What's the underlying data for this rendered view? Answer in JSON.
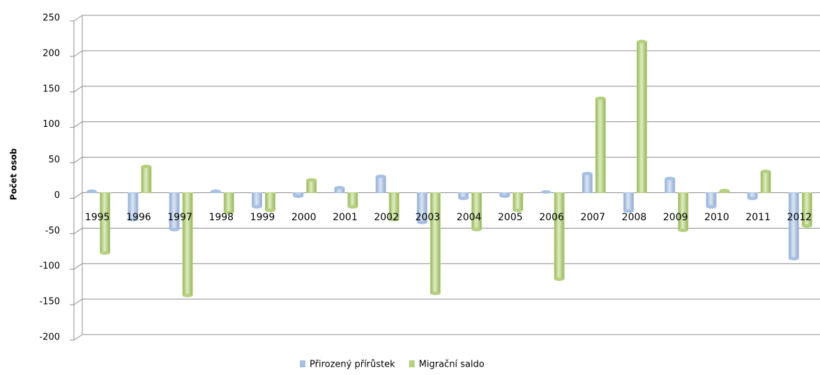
{
  "chart_data": {
    "type": "bar",
    "y_label": "Počet osob",
    "categories": [
      "1995",
      "1996",
      "1997",
      "1998",
      "1999",
      "2000",
      "2001",
      "2002",
      "2003",
      "2004",
      "2005",
      "2006",
      "2007",
      "2008",
      "2009",
      "2010",
      "2011",
      "2012"
    ],
    "series": [
      {
        "name": "Přirozený přírůstek",
        "color": "#a7c0e2",
        "values": [
          2,
          -38,
          -52,
          2,
          -20,
          -5,
          7,
          23,
          -42,
          -8,
          -5,
          1,
          27,
          -26,
          20,
          -20,
          -8,
          -93
        ]
      },
      {
        "name": "Migrační saldo",
        "color": "#b5d07e",
        "values": [
          -85,
          37,
          -145,
          -28,
          -25,
          18,
          -20,
          -38,
          -142,
          -52,
          -25,
          -122,
          133,
          213,
          -53,
          3,
          30,
          -47
        ]
      }
    ],
    "ylim": [
      -200,
      250
    ],
    "yticks": [
      -200,
      -150,
      -100,
      -50,
      0,
      50,
      100,
      150,
      200,
      250
    ],
    "grid": true
  }
}
